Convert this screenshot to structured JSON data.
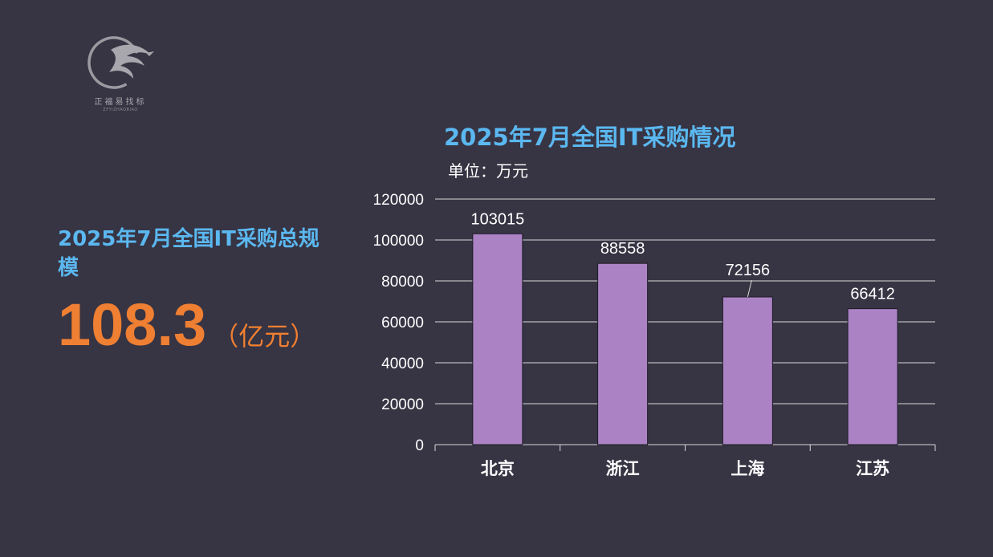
{
  "logo": {
    "name": "正福易找标",
    "sub": "ZFYIZHAOBIAO"
  },
  "summary": {
    "title": "2025年7月全国IT采购总规模",
    "value": "108.3",
    "unit": "（亿元）"
  },
  "colors": {
    "background": "#373443",
    "title": "#5bb8f0",
    "highlight": "#ef7f32",
    "bar": "#ab83c5"
  },
  "chart_data": {
    "type": "bar",
    "title": "2025年7月全国IT采购情况",
    "unit_label": "单位：万元",
    "categories": [
      "北京",
      "浙江",
      "上海",
      "江苏"
    ],
    "values": [
      103015,
      88558,
      72156,
      66412
    ],
    "data_labels": [
      "103015",
      "88558",
      "72156",
      "66412"
    ],
    "ylim": [
      0,
      120000
    ],
    "yticks": [
      "0",
      "20000",
      "40000",
      "60000",
      "80000",
      "100000",
      "120000"
    ],
    "grid": true,
    "legend": "none"
  }
}
